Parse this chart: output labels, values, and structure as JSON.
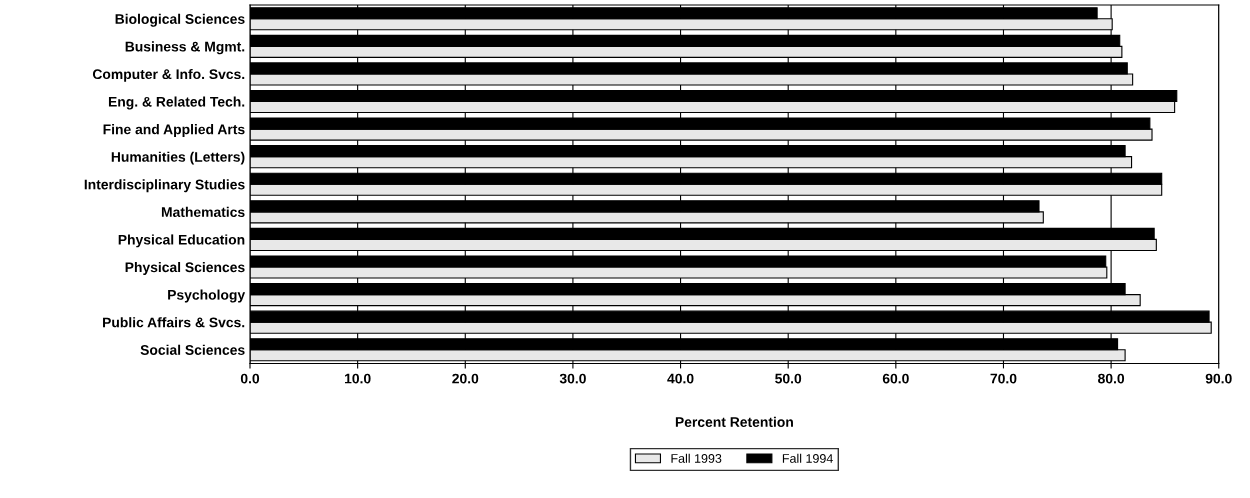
{
  "chart_data": {
    "type": "bar",
    "orientation": "horizontal",
    "xlabel": "Percent Retention",
    "categories": [
      "Biological Sciences",
      "Business & Mgmt.",
      "Computer & Info. Svcs.",
      "Eng. & Related Tech.",
      "Fine and Applied Arts",
      "Humanities (Letters)",
      "Interdisciplinary Studies",
      "Mathematics",
      "Physical Education",
      "Physical Sciences",
      "Psychology",
      "Public Affairs & Svcs.",
      "Social Sciences"
    ],
    "series": [
      {
        "name": "Fall 1993",
        "color": "#e8e8e8",
        "values": [
          80.1,
          81.0,
          82.0,
          85.9,
          83.8,
          81.9,
          84.7,
          73.7,
          84.2,
          79.6,
          82.7,
          89.3,
          81.3
        ]
      },
      {
        "name": "Fall 1994",
        "color": "#000000",
        "values": [
          78.7,
          80.8,
          81.5,
          86.1,
          83.6,
          81.3,
          84.7,
          73.3,
          84.0,
          79.5,
          81.3,
          89.1,
          80.6
        ]
      }
    ],
    "xlim": [
      0,
      90
    ],
    "xticks": [
      {
        "value": 0,
        "label": "0.0"
      },
      {
        "value": 10,
        "label": "10.0"
      },
      {
        "value": 20,
        "label": "20.0"
      },
      {
        "value": 30,
        "label": "30.0"
      },
      {
        "value": 40,
        "label": "40.0"
      },
      {
        "value": 50,
        "label": "50.0"
      },
      {
        "value": 60,
        "label": "60.0"
      },
      {
        "value": 70,
        "label": "70.0"
      },
      {
        "value": 80,
        "label": "80.0"
      },
      {
        "value": 90,
        "label": "90.0"
      }
    ],
    "grid": "x",
    "legend": "bottom"
  }
}
